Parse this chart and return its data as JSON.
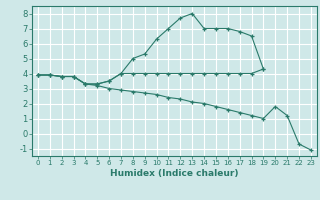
{
  "xlabel": "Humidex (Indice chaleur)",
  "xlim": [
    -0.5,
    23.5
  ],
  "ylim": [
    -1.5,
    8.5
  ],
  "xticks": [
    0,
    1,
    2,
    3,
    4,
    5,
    6,
    7,
    8,
    9,
    10,
    11,
    12,
    13,
    14,
    15,
    16,
    17,
    18,
    19,
    20,
    21,
    22,
    23
  ],
  "yticks": [
    -1,
    0,
    1,
    2,
    3,
    4,
    5,
    6,
    7,
    8
  ],
  "line_color": "#2a7a6a",
  "bg_color": "#cfe8e8",
  "grid_color": "#ffffff",
  "line1_y": [
    3.9,
    3.9,
    3.8,
    3.8,
    3.3,
    3.3,
    3.5,
    4.0,
    5.0,
    5.3,
    6.3,
    7.0,
    7.7,
    8.0,
    7.0,
    7.0,
    7.0,
    6.8,
    6.5,
    4.3,
    null,
    null,
    null,
    null
  ],
  "line2_y": [
    3.9,
    3.9,
    3.8,
    3.8,
    3.3,
    3.3,
    3.5,
    4.0,
    4.0,
    4.0,
    4.0,
    4.0,
    4.0,
    4.0,
    4.0,
    4.0,
    4.0,
    4.0,
    4.0,
    4.3,
    null,
    null,
    null,
    null
  ],
  "line3_y": [
    3.9,
    3.9,
    3.8,
    3.8,
    3.3,
    3.2,
    3.0,
    2.9,
    2.8,
    2.7,
    2.6,
    2.4,
    2.3,
    2.1,
    2.0,
    1.8,
    1.6,
    1.4,
    1.2,
    1.0,
    1.8,
    1.2,
    -0.7,
    -1.1
  ]
}
